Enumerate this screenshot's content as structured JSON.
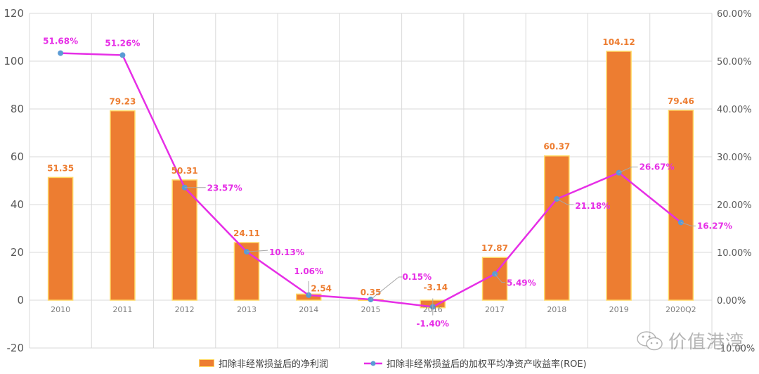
{
  "chart_data": {
    "type": "bar+line",
    "title": "",
    "categories": [
      "2010",
      "2011",
      "2012",
      "2013",
      "2014",
      "2015",
      "2016",
      "2017",
      "2018",
      "2019",
      "2020Q2"
    ],
    "series": [
      {
        "name": "扣除非经常损益后的净利润",
        "type": "bar",
        "axis": "left",
        "color": "#ed7d31",
        "border_color": "#ffd966",
        "values": [
          51.35,
          79.23,
          50.31,
          24.11,
          2.54,
          0.35,
          -3.14,
          17.87,
          60.37,
          104.12,
          79.46
        ],
        "labels": [
          "51.35",
          "79.23",
          "50.31",
          "24.11",
          "2.54",
          "0.35",
          "-3.14",
          "17.87",
          "60.37",
          "104.12",
          "79.46"
        ]
      },
      {
        "name": "扣除非经常损益后的加权平均净资产收益率(ROE)",
        "type": "line",
        "axis": "right",
        "color": "#e62ee6",
        "marker_color": "#5b9bd5",
        "values": [
          51.68,
          51.26,
          23.57,
          10.13,
          1.06,
          0.15,
          -1.4,
          5.49,
          21.18,
          26.67,
          16.27
        ],
        "labels": [
          "51.68%",
          "51.26%",
          "23.57%",
          "10.13%",
          "1.06%",
          "0.15%",
          "-1.40%",
          "5.49%",
          "21.18%",
          "26.67%",
          "16.27%"
        ]
      }
    ],
    "left_axis": {
      "ylim": [
        -20,
        120
      ],
      "ticks": [
        "120",
        "100",
        "80",
        "60",
        "40",
        "20",
        "0",
        "-20"
      ]
    },
    "right_axis": {
      "ylim": [
        -10,
        60
      ],
      "ticks": [
        "60.00%",
        "50.00%",
        "40.00%",
        "30.00%",
        "20.00%",
        "10.00%",
        "0.00%",
        "-10.00%"
      ]
    },
    "xlabel": "",
    "ylabel": "",
    "grid": true,
    "legend_position": "bottom"
  },
  "legend": {
    "bar_label": "扣除非经常损益后的净利润",
    "line_label": "扣除非经常损益后的加权平均净资产收益率(ROE)"
  },
  "watermark": {
    "text": "价值港湾",
    "icon": "wechat-icon"
  }
}
